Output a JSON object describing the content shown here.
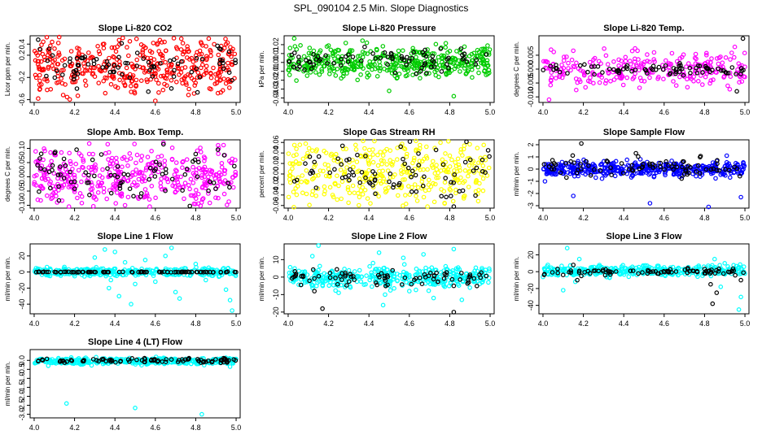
{
  "page_title": "SPL_090104  2.5 Min. Slope Diagnostics",
  "chart_data": [
    {
      "id": "co2",
      "type": "scatter",
      "title": "Slope Li-820 CO2",
      "ylabel": "Licor ppm per min.",
      "xlim": [
        3.98,
        5.02
      ],
      "ylim": [
        -0.65,
        0.55
      ],
      "xticks": [
        4.0,
        4.2,
        4.4,
        4.6,
        4.8,
        5.0
      ],
      "xtick_labels": [
        "4.0",
        "4.2",
        "4.4",
        "4.6",
        "4.8",
        "5.0"
      ],
      "yticks": [
        -0.6,
        -0.2,
        0.2,
        0.4
      ],
      "ytick_labels": [
        "-0.6",
        "-0.2",
        "0.2",
        "0.4"
      ],
      "series": [
        {
          "color": "#ff0000",
          "n": 420,
          "center": 0.0,
          "spread": 0.26,
          "outliers": [
            [
              4.02,
              -0.58
            ],
            [
              4.45,
              -0.35
            ],
            [
              4.6,
              -0.62
            ],
            [
              4.12,
              0.42
            ],
            [
              4.95,
              0.4
            ]
          ]
        },
        {
          "color": "#000000",
          "n": 80,
          "center": 0.0,
          "spread": 0.2,
          "outliers": [
            [
              4.02,
              0.48
            ],
            [
              4.98,
              -0.25
            ]
          ]
        }
      ]
    },
    {
      "id": "pressure",
      "type": "scatter",
      "title": "Slope Li-820 Pressure",
      "ylabel": "kPa per min.",
      "xlim": [
        3.98,
        5.02
      ],
      "ylim": [
        -0.045,
        0.03
      ],
      "xticks": [
        4.0,
        4.2,
        4.4,
        4.6,
        4.8,
        5.0
      ],
      "xtick_labels": [
        "4.0",
        "4.2",
        "4.4",
        "4.6",
        "4.8",
        "5.0"
      ],
      "yticks": [
        -0.04,
        -0.03,
        -0.02,
        -0.01,
        0.0,
        0.01,
        0.02
      ],
      "ytick_labels": [
        "-0.04",
        "-0.03",
        "-0.02",
        "-0.01",
        "0.00",
        "0.01",
        "0.02"
      ],
      "series": [
        {
          "color": "#00cc00",
          "n": 420,
          "center": 0.0,
          "spread": 0.009,
          "outliers": [
            [
              4.03,
              0.027
            ],
            [
              4.5,
              -0.032
            ],
            [
              4.82,
              -0.038
            ],
            [
              4.2,
              0.019
            ],
            [
              4.98,
              -0.014
            ]
          ]
        },
        {
          "color": "#000000",
          "n": 80,
          "center": 0.003,
          "spread": 0.007,
          "outliers": []
        }
      ]
    },
    {
      "id": "temp",
      "type": "scatter",
      "title": "Slope Li-820 Temp.",
      "ylabel": "degrees C per min.",
      "xlim": [
        3.98,
        5.02
      ],
      "ylim": [
        -0.012,
        0.012
      ],
      "xticks": [
        4.0,
        4.2,
        4.4,
        4.6,
        4.8,
        5.0
      ],
      "xtick_labels": [
        "4.0",
        "4.2",
        "4.4",
        "4.6",
        "4.8",
        "5.0"
      ],
      "yticks": [
        -0.01,
        -0.005,
        0.0,
        0.005
      ],
      "ytick_labels": [
        "-0.010",
        "-0.005",
        "0.000",
        "0.005"
      ],
      "series": [
        {
          "color": "#ff00ff",
          "n": 260,
          "center": 0.0,
          "spread": 0.003,
          "outliers": [
            [
              4.03,
              -0.011
            ],
            [
              4.95,
              0.008
            ],
            [
              4.04,
              0.007
            ],
            [
              4.55,
              0.006
            ]
          ]
        },
        {
          "color": "#000000",
          "n": 80,
          "center": 0.0,
          "spread": 0.001,
          "outliers": [
            [
              4.99,
              0.011
            ],
            [
              4.96,
              -0.008
            ]
          ]
        }
      ]
    },
    {
      "id": "boxtemp",
      "type": "scatter",
      "title": "Slope Amb. Box Temp.",
      "ylabel": "degrees C per min.",
      "xlim": [
        3.98,
        5.02
      ],
      "ylim": [
        -0.11,
        0.13
      ],
      "xticks": [
        4.0,
        4.2,
        4.4,
        4.6,
        4.8,
        5.0
      ],
      "xtick_labels": [
        "4.0",
        "4.2",
        "4.4",
        "4.6",
        "4.8",
        "5.0"
      ],
      "yticks": [
        -0.1,
        -0.05,
        0.0,
        0.05,
        0.1
      ],
      "ytick_labels": [
        "-0.10",
        "-0.05",
        "0.00",
        "0.05",
        "0.10"
      ],
      "series": [
        {
          "color": "#ff00ff",
          "n": 420,
          "center": 0.0,
          "spread": 0.05,
          "outliers": [
            [
              4.64,
              0.12
            ],
            [
              4.45,
              -0.1
            ]
          ]
        },
        {
          "color": "#000000",
          "n": 80,
          "center": 0.0,
          "spread": 0.045,
          "outliers": [
            [
              4.8,
              0.08
            ]
          ]
        }
      ]
    },
    {
      "id": "rh",
      "type": "scatter",
      "title": "Slope Gas Stream RH",
      "ylabel": "percent per min.",
      "xlim": [
        3.98,
        5.02
      ],
      "ylim": [
        -0.065,
        0.065
      ],
      "xticks": [
        4.0,
        4.2,
        4.4,
        4.6,
        4.8,
        5.0
      ],
      "xtick_labels": [
        "4.0",
        "4.2",
        "4.4",
        "4.6",
        "4.8",
        "5.0"
      ],
      "yticks": [
        -0.06,
        -0.04,
        -0.02,
        0.0,
        0.02,
        0.04,
        0.06
      ],
      "ytick_labels": [
        "-0.06",
        "-0.04",
        "-0.02",
        "0.00",
        "0.02",
        "0.04",
        "0.06"
      ],
      "series": [
        {
          "color": "#ffff00",
          "n": 420,
          "center": 0.0,
          "spread": 0.04,
          "outliers": []
        },
        {
          "color": "#000000",
          "n": 80,
          "center": 0.0,
          "spread": 0.03,
          "outliers": [
            [
              4.82,
              -0.062
            ],
            [
              4.99,
              0.045
            ]
          ]
        }
      ]
    },
    {
      "id": "sampleflow",
      "type": "scatter",
      "title": "Slope Sample Flow",
      "ylabel": "ml/min per min.",
      "xlim": [
        3.98,
        5.02
      ],
      "ylim": [
        -3.2,
        2.4
      ],
      "xticks": [
        4.0,
        4.2,
        4.4,
        4.6,
        4.8,
        5.0
      ],
      "xtick_labels": [
        "4.0",
        "4.2",
        "4.4",
        "4.6",
        "4.8",
        "5.0"
      ],
      "yticks": [
        -3,
        -2,
        -1,
        0,
        1,
        2
      ],
      "ytick_labels": [
        "-3",
        "-2",
        "-1",
        "0",
        "1",
        "2"
      ],
      "series": [
        {
          "color": "#0000ff",
          "n": 420,
          "center": 0.0,
          "spread": 0.32,
          "outliers": [
            [
              4.15,
              -2.2
            ],
            [
              4.53,
              -2.8
            ],
            [
              4.82,
              -3.1
            ],
            [
              4.98,
              -2.3
            ],
            [
              4.01,
              -1.0
            ],
            [
              4.91,
              1.1
            ]
          ]
        },
        {
          "color": "#000000",
          "n": 80,
          "center": 0.2,
          "spread": 0.4,
          "outliers": [
            [
              4.19,
              2.1
            ],
            [
              4.46,
              1.3
            ]
          ]
        }
      ]
    },
    {
      "id": "line1",
      "type": "scatter",
      "title": "Slope Line 1 Flow",
      "ylabel": "ml/min per min.",
      "xlim": [
        3.98,
        5.02
      ],
      "ylim": [
        -52,
        35
      ],
      "xticks": [
        4.0,
        4.2,
        4.4,
        4.6,
        4.8,
        5.0
      ],
      "xtick_labels": [
        "4.0",
        "4.2",
        "4.4",
        "4.6",
        "4.8",
        "5.0"
      ],
      "yticks": [
        -40,
        -20,
        0,
        20
      ],
      "ytick_labels": [
        "-40",
        "-20",
        "0",
        "20"
      ],
      "series": [
        {
          "color": "#00ffff",
          "n": 330,
          "center": 0.0,
          "spread": 2.5,
          "outliers": [
            [
              4.3,
              18
            ],
            [
              4.35,
              28
            ],
            [
              4.4,
              25
            ],
            [
              4.45,
              12
            ],
            [
              4.38,
              -10
            ],
            [
              4.37,
              -20
            ],
            [
              4.48,
              -40
            ],
            [
              4.55,
              15
            ],
            [
              4.6,
              -12
            ],
            [
              4.65,
              20
            ],
            [
              4.7,
              -25
            ],
            [
              4.68,
              30
            ],
            [
              4.72,
              -33
            ],
            [
              4.85,
              -10
            ],
            [
              4.97,
              -35
            ],
            [
              4.98,
              -48
            ],
            [
              4.95,
              -22
            ],
            [
              4.5,
              -15
            ],
            [
              4.42,
              -30
            ],
            [
              4.8,
              10
            ]
          ]
        },
        {
          "color": "#000000",
          "n": 90,
          "center": 0.0,
          "spread": 0.2,
          "outliers": []
        }
      ]
    },
    {
      "id": "line2",
      "type": "scatter",
      "title": "Slope Line 2 Flow",
      "ylabel": "ml/min per min.",
      "xlim": [
        3.98,
        5.02
      ],
      "ylim": [
        -21,
        19
      ],
      "xticks": [
        4.0,
        4.2,
        4.4,
        4.6,
        4.8,
        5.0
      ],
      "xtick_labels": [
        "4.0",
        "4.2",
        "4.4",
        "4.6",
        "4.8",
        "5.0"
      ],
      "yticks": [
        -20,
        -10,
        0,
        10
      ],
      "ytick_labels": [
        "-20",
        "-10",
        "0",
        "10"
      ],
      "series": [
        {
          "color": "#00ffff",
          "n": 380,
          "center": 0.0,
          "spread": 3.0,
          "outliers": [
            [
              4.15,
              18
            ],
            [
              4.12,
              12
            ],
            [
              4.42,
              8
            ],
            [
              4.45,
              14
            ],
            [
              4.48,
              -10
            ],
            [
              4.47,
              -16
            ],
            [
              4.57,
              11
            ],
            [
              4.6,
              -8
            ],
            [
              4.67,
              13
            ],
            [
              4.72,
              -12
            ],
            [
              4.82,
              16
            ],
            [
              4.86,
              -13
            ],
            [
              4.9,
              -6
            ],
            [
              4.25,
              -9
            ]
          ]
        },
        {
          "color": "#000000",
          "n": 80,
          "center": 0.0,
          "spread": 2.5,
          "outliers": [
            [
              4.17,
              -18
            ],
            [
              4.82,
              -20
            ],
            [
              4.13,
              -8
            ],
            [
              4.82,
              -5
            ]
          ]
        }
      ]
    },
    {
      "id": "line3",
      "type": "scatter",
      "title": "Slope Line 3 Flow",
      "ylabel": "ml/min per min.",
      "xlim": [
        3.98,
        5.02
      ],
      "ylim": [
        -50,
        33
      ],
      "xticks": [
        4.0,
        4.2,
        4.4,
        4.6,
        4.8,
        5.0
      ],
      "xtick_labels": [
        "4.0",
        "4.2",
        "4.4",
        "4.6",
        "4.8",
        "5.0"
      ],
      "yticks": [
        -40,
        -20,
        0,
        20
      ],
      "ytick_labels": [
        "-40",
        "-20",
        "0",
        "20"
      ],
      "series": [
        {
          "color": "#00ffff",
          "n": 360,
          "center": 1.0,
          "spread": 3.0,
          "outliers": [
            [
              4.12,
              28
            ],
            [
              4.18,
              15
            ],
            [
              4.1,
              -22
            ],
            [
              4.16,
              -12
            ],
            [
              4.85,
              15
            ],
            [
              4.88,
              -18
            ],
            [
              4.97,
              -45
            ],
            [
              4.98,
              -30
            ],
            [
              4.9,
              10
            ]
          ]
        },
        {
          "color": "#000000",
          "n": 80,
          "center": 0.0,
          "spread": 2.0,
          "outliers": [
            [
              4.17,
              -10
            ],
            [
              4.19,
              -5
            ],
            [
              4.15,
              8
            ],
            [
              4.84,
              -38
            ],
            [
              4.83,
              -15
            ],
            [
              4.86,
              -25
            ],
            [
              4.98,
              -10
            ]
          ]
        }
      ]
    },
    {
      "id": "line4",
      "type": "scatter",
      "title": "Slope Line 4 (LT) Flow",
      "ylabel": "ml/min per min.",
      "xlim": [
        3.98,
        5.02
      ],
      "ylim": [
        -3.2,
        0.6
      ],
      "xticks": [
        4.0,
        4.2,
        4.4,
        4.6,
        4.8,
        5.0
      ],
      "xtick_labels": [
        "4.0",
        "4.2",
        "4.4",
        "4.6",
        "4.8",
        "5.0"
      ],
      "yticks": [
        -3.0,
        -2.5,
        -2.0,
        -1.5,
        -1.0,
        -0.5,
        0.0
      ],
      "ytick_labels": [
        "-3.0",
        "-2.5",
        "-2.0",
        "-1.5",
        "-1.0",
        "-0.5",
        "0.0"
      ],
      "series": [
        {
          "color": "#00ffff",
          "n": 380,
          "center": -0.05,
          "spread": 0.09,
          "outliers": [
            [
              4.16,
              -2.4
            ],
            [
              4.5,
              -2.65
            ],
            [
              4.83,
              -3.0
            ],
            [
              4.97,
              -0.35
            ],
            [
              4.07,
              -0.3
            ]
          ]
        },
        {
          "color": "#000000",
          "n": 90,
          "center": 0.0,
          "spread": 0.06,
          "outliers": []
        }
      ]
    }
  ]
}
